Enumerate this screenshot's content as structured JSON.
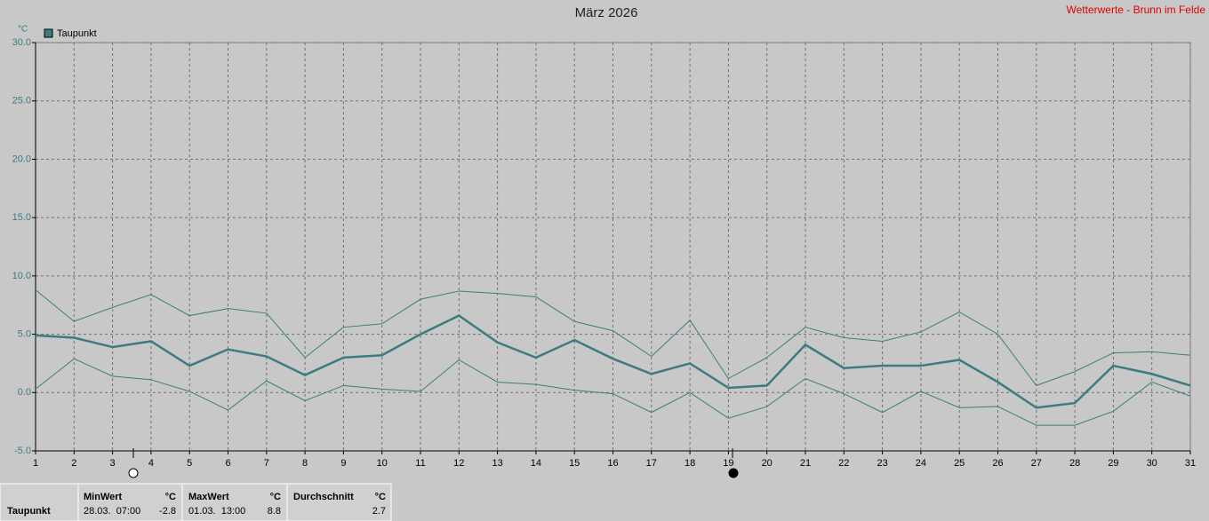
{
  "chart_data": {
    "type": "line",
    "title": "März 2026",
    "source": "Wetterwerte - Brunn im Felde",
    "unit": "°C",
    "x": [
      1,
      2,
      3,
      4,
      5,
      6,
      7,
      8,
      9,
      10,
      11,
      12,
      13,
      14,
      15,
      16,
      17,
      18,
      19,
      20,
      21,
      22,
      23,
      24,
      25,
      26,
      27,
      28,
      29,
      30,
      31
    ],
    "xlim": [
      1,
      31
    ],
    "xticks": [
      1,
      2,
      3,
      4,
      5,
      6,
      7,
      8,
      9,
      10,
      11,
      12,
      13,
      14,
      15,
      16,
      17,
      18,
      19,
      20,
      21,
      22,
      23,
      24,
      25,
      26,
      27,
      28,
      29,
      30,
      31
    ],
    "ylim": [
      -5,
      30
    ],
    "yticks": [
      {
        "value": -5,
        "label": "-5.0"
      },
      {
        "value": 0,
        "label": "0.0"
      },
      {
        "value": 5,
        "label": "5.0"
      },
      {
        "value": 10,
        "label": "10.0"
      },
      {
        "value": 15,
        "label": "15.0"
      },
      {
        "value": 20,
        "label": "20.0"
      },
      {
        "value": 25,
        "label": "25.0"
      },
      {
        "value": 30,
        "label": "30.0"
      }
    ],
    "grid": true,
    "series": [
      {
        "name": "Taupunkt",
        "color": "#3c7c80",
        "width": 2.5,
        "values": [
          4.9,
          4.7,
          3.9,
          4.4,
          2.3,
          3.7,
          3.1,
          1.5,
          3.0,
          3.2,
          5.0,
          6.6,
          4.3,
          3.0,
          4.5,
          2.9,
          1.6,
          2.5,
          0.4,
          0.6,
          4.1,
          2.1,
          2.3,
          2.3,
          2.8,
          0.9,
          -1.3,
          -0.9,
          2.3,
          1.6,
          0.6
        ]
      },
      {
        "color": "#3c7c80",
        "width": 1,
        "values": [
          8.8,
          6.1,
          7.3,
          8.4,
          6.6,
          7.2,
          6.8,
          3.0,
          5.6,
          5.9,
          8.0,
          8.7,
          8.5,
          8.2,
          6.1,
          5.3,
          3.1,
          6.2,
          1.2,
          3.0,
          5.6,
          4.7,
          4.4,
          5.2,
          6.9,
          5.0,
          0.6,
          1.8,
          3.4,
          3.5,
          3.2
        ]
      },
      {
        "color": "#3c7c80",
        "width": 1,
        "values": [
          0.3,
          2.9,
          1.4,
          1.1,
          0.1,
          -1.5,
          1.0,
          -0.7,
          0.6,
          0.3,
          0.1,
          2.8,
          0.9,
          0.7,
          0.2,
          -0.1,
          -1.7,
          0.0,
          -2.2,
          -1.2,
          1.2,
          -0.1,
          -1.7,
          0.1,
          -1.3,
          -1.2,
          -2.8,
          -2.8,
          -1.6,
          0.9,
          -0.3
        ]
      }
    ]
  },
  "stats_table": {
    "row_label": "Taupunkt",
    "min": {
      "header": "MinWert",
      "unit": "°C",
      "time": "28.03.  07:00",
      "value": -2.8
    },
    "max": {
      "header": "MaxWert",
      "unit": "°C",
      "time": "01.03.  13:00",
      "value": 8.8
    },
    "avg": {
      "header": "Durchschnitt",
      "unit": "°C",
      "value": 2.7
    }
  }
}
